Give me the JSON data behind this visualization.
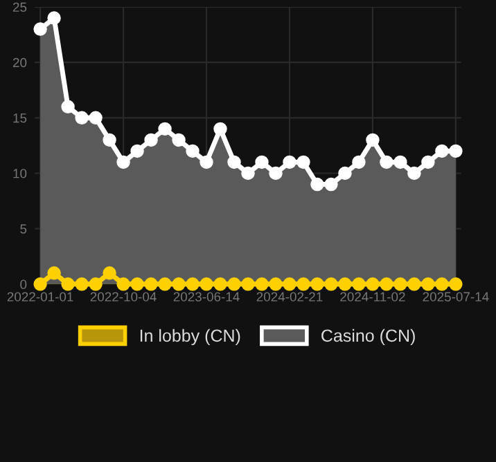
{
  "chart_data": {
    "type": "area",
    "categories": [
      "2022-01-01",
      null,
      null,
      null,
      null,
      null,
      "2022-10-04",
      null,
      null,
      null,
      null,
      null,
      "2023-06-14",
      null,
      null,
      null,
      null,
      null,
      "2024-02-21",
      null,
      null,
      null,
      null,
      null,
      "2024-11-02",
      null,
      null,
      null,
      null,
      null,
      "2025-07-14"
    ],
    "series": [
      {
        "name": "In lobby (CN)",
        "color": "#ffd000",
        "values": [
          0,
          1,
          0,
          0,
          0,
          1,
          0,
          0,
          0,
          0,
          0,
          0,
          0,
          0,
          0,
          0,
          0,
          0,
          0,
          0,
          0,
          0,
          0,
          0,
          0,
          0,
          0,
          0,
          0,
          0,
          0
        ]
      },
      {
        "name": "Casino (CN)",
        "color": "#ffffff",
        "values": [
          23,
          24,
          16,
          15,
          15,
          13,
          11,
          12,
          13,
          14,
          13,
          12,
          11,
          14,
          11,
          10,
          11,
          10,
          11,
          11,
          9,
          9,
          10,
          11,
          13,
          11,
          11,
          10,
          11,
          12,
          12
        ]
      }
    ],
    "ylim": [
      0,
      25
    ],
    "yticks": [
      0,
      5,
      10,
      15,
      20,
      25
    ],
    "grid": true,
    "legend": "bottom",
    "marker": "circle",
    "line_style": "solid"
  }
}
